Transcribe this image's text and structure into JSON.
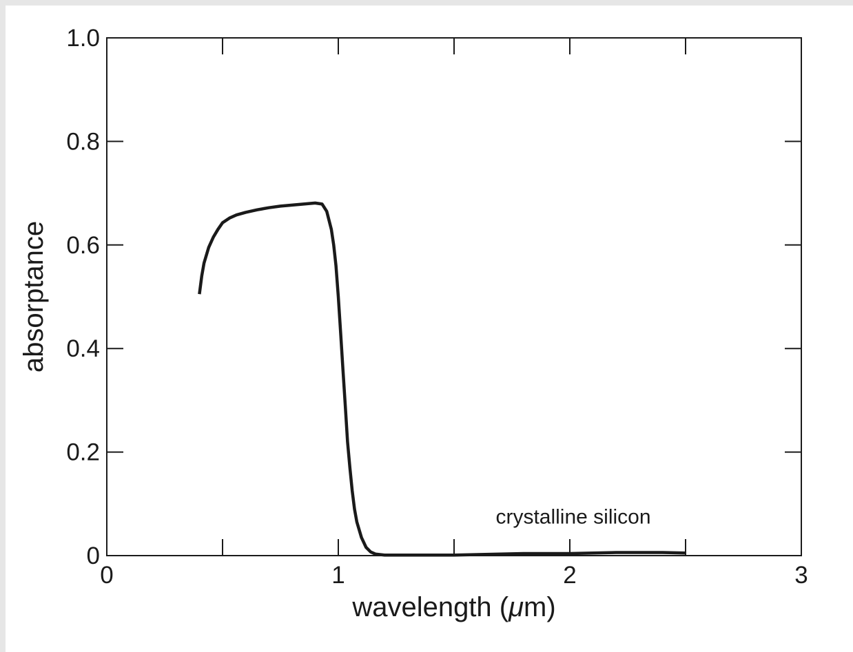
{
  "chart_data": {
    "type": "line",
    "title": "",
    "xlabel": "wavelength (",
    "xlabel_symbol": "μ",
    "xlabel_suffix": "m)",
    "ylabel": "absorptance",
    "xlim": [
      0,
      3
    ],
    "ylim": [
      0,
      1
    ],
    "xticks": [
      0,
      1,
      2,
      3
    ],
    "xtick_labels": [
      "0",
      "1",
      "2",
      "3"
    ],
    "yticks": [
      0,
      0.2,
      0.4,
      0.6,
      0.8,
      1.0
    ],
    "ytick_labels": [
      "0",
      "0.2",
      "0.4",
      "0.6",
      "0.8",
      "1.0"
    ],
    "minor_xticks": [
      0.5,
      1.5,
      2.5
    ],
    "annotation": "crystalline silicon",
    "annotation_position": [
      1.68,
      0.062
    ],
    "grid": false,
    "line_color": "#1a1a1a",
    "series": [
      {
        "x": [
          0.4,
          0.41,
          0.42,
          0.44,
          0.46,
          0.48,
          0.5,
          0.53,
          0.56,
          0.6,
          0.65,
          0.7,
          0.75,
          0.8,
          0.85,
          0.9,
          0.93,
          0.95,
          0.97,
          0.98,
          0.99,
          1.0,
          1.01,
          1.02,
          1.03,
          1.04,
          1.05,
          1.06,
          1.07,
          1.08,
          1.1,
          1.12,
          1.14,
          1.16,
          1.18,
          1.2,
          1.3,
          1.4,
          1.5,
          1.6,
          1.7,
          1.8,
          1.9,
          2.0,
          2.1,
          2.2,
          2.3,
          2.4,
          2.5
        ],
        "y": [
          0.505,
          0.54,
          0.565,
          0.595,
          0.615,
          0.63,
          0.643,
          0.652,
          0.658,
          0.663,
          0.668,
          0.672,
          0.675,
          0.677,
          0.679,
          0.681,
          0.679,
          0.665,
          0.63,
          0.6,
          0.56,
          0.5,
          0.43,
          0.36,
          0.29,
          0.22,
          0.17,
          0.125,
          0.09,
          0.065,
          0.035,
          0.016,
          0.007,
          0.003,
          0.002,
          0.001,
          0.001,
          0.001,
          0.001,
          0.002,
          0.003,
          0.004,
          0.004,
          0.004,
          0.005,
          0.006,
          0.006,
          0.006,
          0.005
        ]
      }
    ]
  }
}
